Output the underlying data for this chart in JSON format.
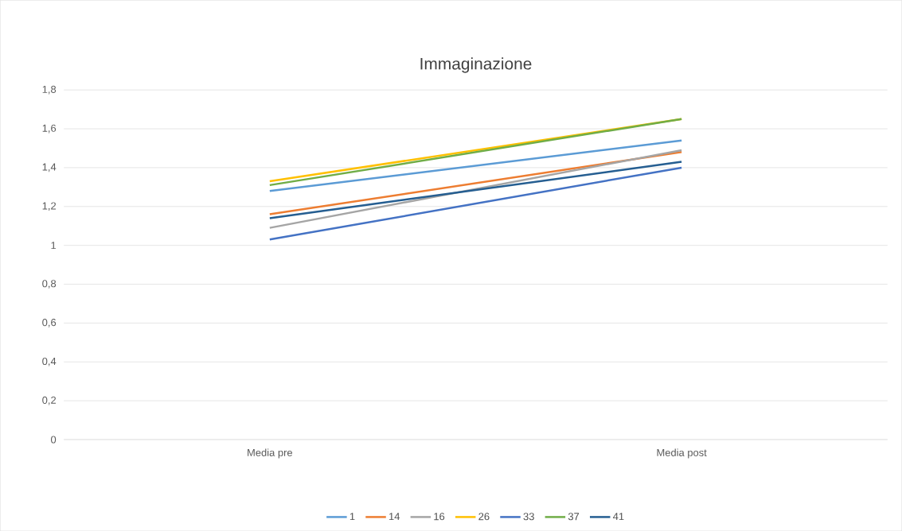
{
  "chart_data": {
    "type": "line",
    "title": "Immaginazione",
    "categories": [
      "Media pre",
      "Media post"
    ],
    "series": [
      {
        "name": "1",
        "color": "#5b9bd5",
        "values": [
          1.28,
          1.54
        ]
      },
      {
        "name": "14",
        "color": "#ed7d31",
        "values": [
          1.16,
          1.48
        ]
      },
      {
        "name": "16",
        "color": "#a5a5a5",
        "values": [
          1.09,
          1.49
        ]
      },
      {
        "name": "26",
        "color": "#ffc000",
        "values": [
          1.33,
          1.65
        ]
      },
      {
        "name": "33",
        "color": "#4472c4",
        "values": [
          1.03,
          1.4
        ]
      },
      {
        "name": "37",
        "color": "#70ad47",
        "values": [
          1.31,
          1.65
        ]
      },
      {
        "name": "41",
        "color": "#255e91",
        "values": [
          1.14,
          1.43
        ]
      }
    ],
    "ylim": [
      0,
      1.8
    ],
    "yticks": [
      {
        "value": 0,
        "label": "0"
      },
      {
        "value": 0.2,
        "label": "0,2"
      },
      {
        "value": 0.4,
        "label": "0,4"
      },
      {
        "value": 0.6,
        "label": "0,6"
      },
      {
        "value": 0.8,
        "label": "0,8"
      },
      {
        "value": 1,
        "label": "1"
      },
      {
        "value": 1.2,
        "label": "1,2"
      },
      {
        "value": 1.4,
        "label": "1,4"
      },
      {
        "value": 1.6,
        "label": "1,6"
      },
      {
        "value": 1.8,
        "label": "1,8"
      }
    ],
    "grid": "y",
    "legend": "bottom",
    "marker": "none",
    "line_style": "solid"
  }
}
